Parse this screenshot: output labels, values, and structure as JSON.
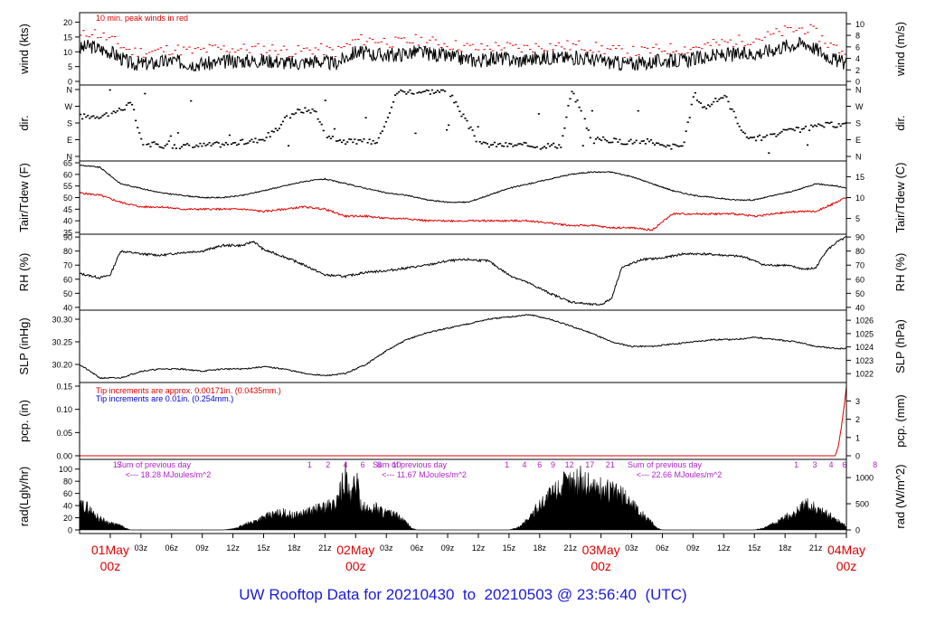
{
  "footer_title": "UW Rooftop Data for 20210430  to  20210503 @ 23:56:40  (UTC)",
  "colors": {
    "frame": "#000000",
    "red": "#e00000",
    "blue": "#0000dd",
    "purple": "#b022c8",
    "footer": "#1a1adb"
  },
  "x_axis": {
    "hour_ticks": [
      "03z",
      "06z",
      "09z",
      "12z",
      "15z",
      "18z",
      "21z",
      "03z",
      "06z",
      "09z",
      "12z",
      "15z",
      "18z",
      "21z",
      "03z",
      "06z",
      "09z",
      "12z",
      "15z",
      "18z",
      "21z"
    ],
    "day_labels": [
      {
        "date": "01May",
        "hour": "00z"
      },
      {
        "date": "02May",
        "hour": "00z"
      },
      {
        "date": "03May",
        "hour": "00z"
      },
      {
        "date": "04May",
        "hour": "00z"
      }
    ]
  },
  "panels": {
    "wind": {
      "left_label": "wind (kts)",
      "right_label": "wind (m/s)",
      "left_ticks": [
        "0",
        "5",
        "10",
        "15",
        "20"
      ],
      "right_ticks": [
        "0",
        "2",
        "4",
        "6",
        "8",
        "10"
      ],
      "note": "10 min. peak winds in red"
    },
    "dir": {
      "left_label": "dir.",
      "right_label": "dir.",
      "left_ticks": [
        "N",
        "E",
        "S",
        "W",
        "N"
      ],
      "right_ticks": [
        "N",
        "E",
        "S",
        "W",
        "N"
      ]
    },
    "temp": {
      "left_label": "Tair/Tdew (F)",
      "right_label": "Tair/Tdew (C)",
      "left_ticks": [
        "35",
        "40",
        "45",
        "50",
        "55",
        "60",
        "65"
      ],
      "right_ticks": [
        "5",
        "10",
        "15"
      ]
    },
    "rh": {
      "left_label": "RH (%)",
      "right_label": "RH (%)",
      "left_ticks": [
        "40",
        "50",
        "60",
        "70",
        "80",
        "90"
      ],
      "right_ticks": [
        "40",
        "50",
        "60",
        "70",
        "80",
        "90"
      ]
    },
    "slp": {
      "left_label": "SLP (inHg)",
      "right_label": "SLP (hPa)",
      "left_ticks": [
        "30.20",
        "30.25",
        "30.30"
      ],
      "right_ticks": [
        "1022",
        "1023",
        "1024",
        "1025",
        "1026"
      ]
    },
    "pcp": {
      "left_label": "pcp. (in)",
      "right_label": "pcp. (mm)",
      "left_ticks": [
        "0.00",
        "0.05",
        "0.10",
        "0.15"
      ],
      "right_ticks": [
        "0",
        "1",
        "2",
        "3"
      ],
      "note_red": "Tip increments are approx. 0.00171in. (0.0435mm.)",
      "note_blue": "Tip increments are 0.01in. (0.254mm.)"
    },
    "rad": {
      "left_label": "rad(Lgly/hr)",
      "right_label": "rad (W/m^2)",
      "left_ticks": [
        "0",
        "20",
        "40",
        "60",
        "80",
        "100"
      ],
      "right_ticks": [
        "0",
        "500",
        "1000"
      ],
      "sum_label": "Sum of previous day",
      "sums": [
        "<--- 18.28 MJoules/m^2",
        "<--- 11.67 MJoules/m^2",
        "<--- 22.66 MJoules/m^2"
      ],
      "top_numbers": [
        {
          "hour": 0.7,
          "text": "17"
        },
        {
          "hour": 19.5,
          "text": "1"
        },
        {
          "hour": 21.3,
          "text": "2"
        },
        {
          "hour": 23.0,
          "text": "4"
        },
        {
          "hour": 24.7,
          "text": "6"
        },
        {
          "hour": 26.3,
          "text": "8"
        },
        {
          "hour": 28.0,
          "text": "10"
        },
        {
          "hour": 38.8,
          "text": "1"
        },
        {
          "hour": 40.5,
          "text": "4"
        },
        {
          "hour": 42.0,
          "text": "6"
        },
        {
          "hour": 43.3,
          "text": "9"
        },
        {
          "hour": 44.9,
          "text": "12"
        },
        {
          "hour": 46.9,
          "text": "17"
        },
        {
          "hour": 48.9,
          "text": "21"
        },
        {
          "hour": 67.1,
          "text": "1"
        },
        {
          "hour": 68.9,
          "text": "3"
        },
        {
          "hour": 70.5,
          "text": "4"
        },
        {
          "hour": 71.8,
          "text": "6"
        },
        {
          "hour": 74.8,
          "text": "8"
        }
      ]
    }
  },
  "chart_data": {
    "type": "line",
    "x_unit": "hours since 01May 00z",
    "x_range": [
      -3,
      72
    ],
    "series": [
      {
        "panel": "wind",
        "name": "wind",
        "unit": "kts",
        "x": [
          -3,
          -2,
          0,
          2,
          4,
          6,
          8,
          10,
          12,
          14,
          16,
          18,
          20,
          22,
          24,
          26,
          28,
          30,
          32,
          34,
          36,
          38,
          40,
          42,
          44,
          46,
          48,
          50,
          52,
          54,
          56,
          58,
          60,
          62,
          64,
          66,
          68,
          69,
          70,
          71,
          72
        ],
        "y": [
          11,
          12,
          10,
          6,
          6,
          7,
          6,
          6,
          7,
          7,
          7,
          6,
          7,
          6,
          10,
          9,
          9,
          10,
          9,
          8,
          7,
          8,
          7,
          8,
          8,
          8,
          7,
          6,
          6,
          7,
          7,
          8,
          9,
          9,
          10,
          12,
          13,
          11,
          9,
          7,
          6
        ]
      },
      {
        "panel": "wind",
        "name": "10 min. peak winds in red",
        "unit": "kts",
        "x": [
          -3,
          -2,
          0,
          2,
          4,
          6,
          8,
          10,
          12,
          14,
          16,
          18,
          20,
          22,
          24,
          26,
          28,
          30,
          32,
          34,
          36,
          38,
          40,
          42,
          44,
          46,
          48,
          50,
          52,
          54,
          56,
          58,
          60,
          62,
          64,
          66,
          68,
          69,
          70,
          71,
          72
        ],
        "y": [
          15,
          17,
          14,
          10,
          10,
          11,
          10,
          11,
          11,
          11,
          11,
          10,
          11,
          10,
          14,
          14,
          13,
          14,
          13,
          12,
          11,
          12,
          11,
          12,
          12,
          12,
          11,
          10,
          10,
          11,
          11,
          12,
          13,
          14,
          15,
          17,
          18,
          16,
          13,
          11,
          10
        ]
      },
      {
        "panel": "temp",
        "name": "Tair",
        "unit": "F",
        "x": [
          -3,
          -1,
          1,
          3,
          5,
          7,
          9,
          11,
          13,
          15,
          17,
          19,
          21,
          23,
          25,
          27,
          29,
          31,
          33,
          35,
          37,
          39,
          41,
          43,
          45,
          47,
          49,
          51,
          53,
          55,
          57,
          59,
          61,
          63,
          65,
          67,
          69,
          71,
          72
        ],
        "y": [
          64,
          63,
          56,
          54,
          52,
          51,
          50,
          50,
          51,
          53,
          55,
          57,
          58,
          56,
          54,
          52,
          51,
          49,
          48,
          48,
          51,
          54,
          56,
          58,
          60,
          61,
          61,
          59,
          56,
          53,
          51,
          50,
          49,
          49,
          51,
          53,
          56,
          55,
          54
        ]
      },
      {
        "panel": "temp",
        "name": "Tdew",
        "unit": "F",
        "x": [
          -3,
          -1,
          1,
          3,
          5,
          7,
          9,
          11,
          13,
          15,
          17,
          19,
          21,
          23,
          25,
          27,
          29,
          31,
          33,
          35,
          37,
          39,
          41,
          43,
          45,
          47,
          49,
          51,
          53,
          55,
          57,
          59,
          61,
          63,
          65,
          67,
          69,
          71,
          72
        ],
        "y": [
          52,
          51,
          48,
          46,
          46,
          45,
          45,
          45,
          45,
          44,
          45,
          46,
          45,
          42,
          42,
          41,
          41,
          40,
          40,
          40,
          40,
          40,
          40,
          39,
          38,
          38,
          37,
          37,
          36,
          43,
          43,
          43,
          43,
          42,
          43,
          44,
          44,
          48,
          50
        ]
      },
      {
        "panel": "rh",
        "name": "RH",
        "unit": "%",
        "x": [
          -3,
          -1,
          0,
          1,
          3,
          5,
          7,
          9,
          11,
          13,
          14,
          15,
          17,
          19,
          21,
          23,
          25,
          27,
          29,
          31,
          33,
          35,
          37,
          39,
          41,
          43,
          45,
          47,
          48,
          49,
          50,
          52,
          54,
          56,
          58,
          60,
          62,
          64,
          66,
          68,
          69,
          70,
          71,
          72
        ],
        "y": [
          64,
          61,
          63,
          80,
          78,
          77,
          79,
          80,
          84,
          84,
          87,
          81,
          76,
          70,
          63,
          62,
          65,
          66,
          68,
          70,
          73,
          74,
          73,
          63,
          57,
          50,
          44,
          42,
          42,
          46,
          68,
          74,
          75,
          78,
          78,
          77,
          76,
          70,
          70,
          67,
          68,
          80,
          86,
          90
        ]
      },
      {
        "panel": "slp",
        "name": "SLP",
        "unit": "inHg",
        "x": [
          -3,
          -1,
          1,
          3,
          5,
          7,
          9,
          11,
          13,
          15,
          17,
          19,
          21,
          23,
          25,
          27,
          29,
          31,
          33,
          35,
          37,
          39,
          41,
          43,
          45,
          47,
          49,
          51,
          53,
          55,
          57,
          59,
          61,
          63,
          65,
          67,
          69,
          71,
          72
        ],
        "y": [
          30.2,
          30.17,
          30.17,
          30.185,
          30.19,
          30.19,
          30.185,
          30.19,
          30.19,
          30.195,
          30.19,
          30.18,
          30.175,
          30.18,
          30.2,
          30.23,
          30.255,
          30.27,
          30.28,
          30.29,
          30.3,
          30.305,
          30.31,
          30.3,
          30.285,
          30.27,
          30.25,
          30.24,
          30.24,
          30.245,
          30.25,
          30.255,
          30.255,
          30.26,
          30.255,
          30.25,
          30.24,
          30.235,
          30.235
        ]
      },
      {
        "panel": "pcp",
        "name": "pcp",
        "unit": "in",
        "x": [
          -3,
          70.9,
          71.2,
          71.5,
          71.8,
          72
        ],
        "y": [
          0,
          0,
          0.02,
          0.06,
          0.11,
          0.15
        ]
      },
      {
        "panel": "rad",
        "name": "rad",
        "unit": "Lgly/hr",
        "x": [
          -3,
          -2.5,
          -2,
          -1,
          0,
          1,
          1.5,
          2,
          11,
          12,
          13,
          14,
          15,
          16,
          17,
          18,
          19,
          20,
          21,
          22,
          23,
          23.5,
          24,
          24.5,
          25,
          26,
          27,
          28,
          29,
          29.5,
          30,
          39,
          40,
          41,
          42,
          43,
          44,
          45,
          46,
          47,
          48,
          49,
          50,
          51,
          52,
          53,
          53.5,
          54,
          63,
          64,
          65,
          66,
          67,
          68,
          69,
          70,
          71,
          72
        ],
        "y": [
          40,
          45,
          35,
          20,
          12,
          8,
          3,
          0,
          0,
          2,
          8,
          15,
          22,
          28,
          30,
          25,
          30,
          35,
          42,
          45,
          98,
          50,
          92,
          48,
          35,
          40,
          30,
          25,
          12,
          3,
          0,
          0,
          5,
          22,
          45,
          62,
          78,
          85,
          88,
          80,
          72,
          70,
          62,
          48,
          28,
          12,
          3,
          0,
          0,
          4,
          12,
          22,
          30,
          45,
          38,
          30,
          18,
          8
        ]
      }
    ],
    "y_ranges": {
      "wind": [
        0,
        22
      ],
      "dir_deg": [
        0,
        360
      ],
      "temp_F": [
        35,
        65
      ],
      "rh": [
        38,
        92
      ],
      "slp": [
        30.16,
        30.32
      ],
      "pcp": [
        0,
        0.15
      ],
      "rad": [
        0,
        110
      ]
    }
  }
}
